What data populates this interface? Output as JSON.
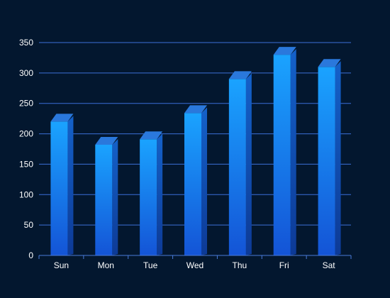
{
  "chart_data": {
    "type": "bar",
    "categories": [
      "Sun",
      "Mon",
      "Tue",
      "Wed",
      "Thu",
      "Fri",
      "Sat"
    ],
    "values": [
      220,
      182,
      191,
      234,
      290,
      330,
      310
    ],
    "ylim": [
      0,
      350
    ],
    "yticks": [
      0,
      50,
      100,
      150,
      200,
      250,
      300,
      350
    ],
    "grid": true,
    "style": "3d-bar",
    "colors": {
      "background": "#03172f",
      "bar_front_top": "#1aa3ff",
      "bar_front_bottom": "#1454d6",
      "bar_side_top": "#1461c9",
      "bar_side_bottom": "#0d3a96",
      "bar_cap": "#2a78dc",
      "grid": "#3b6fd8",
      "axis": "#4a7bd8",
      "text": "#ffffff"
    }
  }
}
